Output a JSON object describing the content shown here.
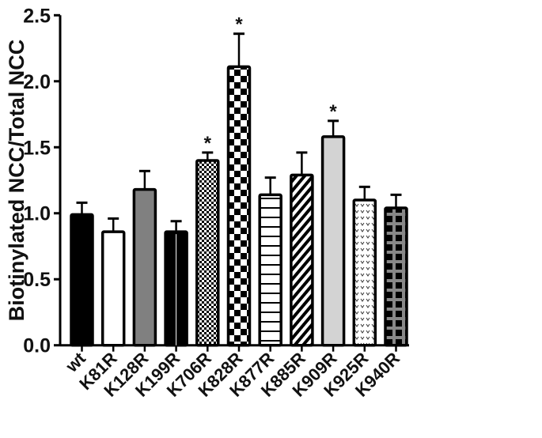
{
  "chart_data": {
    "type": "bar",
    "title": "",
    "xlabel": "",
    "ylabel": "Biotinylated NCC/Total NCC",
    "ylim": [
      0,
      2.5
    ],
    "yticks": [
      "0.0",
      "0.5",
      "1.0",
      "1.5",
      "2.0",
      "2.5"
    ],
    "grid": false,
    "categories": [
      "wt",
      "K81R",
      "K128R",
      "K199R",
      "K706R",
      "K828R",
      "K877R",
      "K885R",
      "K909R",
      "K925R",
      "K940R"
    ],
    "values": [
      0.99,
      0.86,
      1.18,
      0.86,
      1.4,
      2.11,
      1.14,
      1.29,
      1.58,
      1.1,
      1.04
    ],
    "error_upper": [
      1.08,
      0.96,
      1.32,
      0.94,
      1.46,
      2.36,
      1.27,
      1.46,
      1.7,
      1.2,
      1.14
    ],
    "significance": [
      "",
      "",
      "",
      "",
      "*",
      "*",
      "",
      "",
      "*",
      "",
      ""
    ],
    "fills": [
      "solid-black",
      "white",
      "solid-gray",
      "black-vertical-line",
      "fine-checker",
      "coarse-checker",
      "horizontal-lines",
      "diagonal-lines",
      "light-gray",
      "dots",
      "gray-grid"
    ]
  }
}
